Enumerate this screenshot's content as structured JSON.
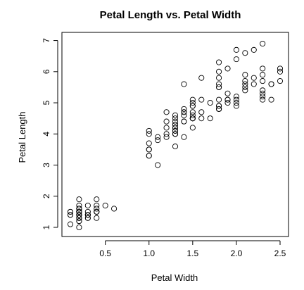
{
  "chart_data": {
    "type": "scatter",
    "title": "Petal Length vs. Petal Width",
    "xlabel": "Petal Width",
    "ylabel": "Petal Length",
    "xlim": [
      0.1,
      2.5
    ],
    "ylim": [
      1.0,
      6.9
    ],
    "x_ticks": [
      0.5,
      1.0,
      1.5,
      2.0,
      2.5
    ],
    "x_tick_labels": [
      "0.5",
      "1.0",
      "1.5",
      "2.0",
      "2.5"
    ],
    "y_ticks": [
      1,
      2,
      3,
      4,
      5,
      6,
      7
    ],
    "y_tick_labels": [
      "1",
      "2",
      "3",
      "4",
      "5",
      "6",
      "7"
    ],
    "grid": false,
    "marker": "open-circle",
    "points": [
      [
        0.2,
        1.4
      ],
      [
        0.2,
        1.4
      ],
      [
        0.2,
        1.3
      ],
      [
        0.2,
        1.5
      ],
      [
        0.2,
        1.4
      ],
      [
        0.4,
        1.7
      ],
      [
        0.3,
        1.4
      ],
      [
        0.2,
        1.5
      ],
      [
        0.2,
        1.4
      ],
      [
        0.1,
        1.5
      ],
      [
        0.2,
        1.5
      ],
      [
        0.2,
        1.6
      ],
      [
        0.1,
        1.4
      ],
      [
        0.1,
        1.1
      ],
      [
        0.2,
        1.2
      ],
      [
        0.4,
        1.5
      ],
      [
        0.4,
        1.3
      ],
      [
        0.3,
        1.4
      ],
      [
        0.3,
        1.7
      ],
      [
        0.3,
        1.5
      ],
      [
        0.2,
        1.7
      ],
      [
        0.4,
        1.5
      ],
      [
        0.2,
        1.0
      ],
      [
        0.5,
        1.7
      ],
      [
        0.2,
        1.9
      ],
      [
        0.2,
        1.6
      ],
      [
        0.4,
        1.6
      ],
      [
        0.2,
        1.5
      ],
      [
        0.2,
        1.4
      ],
      [
        0.2,
        1.6
      ],
      [
        0.2,
        1.6
      ],
      [
        0.4,
        1.5
      ],
      [
        0.1,
        1.5
      ],
      [
        0.2,
        1.4
      ],
      [
        0.2,
        1.5
      ],
      [
        0.2,
        1.2
      ],
      [
        0.2,
        1.3
      ],
      [
        0.1,
        1.4
      ],
      [
        0.2,
        1.3
      ],
      [
        0.2,
        1.5
      ],
      [
        0.3,
        1.3
      ],
      [
        0.3,
        1.3
      ],
      [
        0.2,
        1.3
      ],
      [
        0.6,
        1.6
      ],
      [
        0.4,
        1.9
      ],
      [
        0.3,
        1.4
      ],
      [
        0.2,
        1.6
      ],
      [
        0.2,
        1.4
      ],
      [
        0.2,
        1.5
      ],
      [
        0.2,
        1.4
      ],
      [
        1.4,
        4.7
      ],
      [
        1.5,
        4.5
      ],
      [
        1.5,
        4.9
      ],
      [
        1.3,
        4.0
      ],
      [
        1.5,
        4.6
      ],
      [
        1.3,
        4.5
      ],
      [
        1.6,
        4.7
      ],
      [
        1.0,
        3.3
      ],
      [
        1.3,
        4.6
      ],
      [
        1.4,
        3.9
      ],
      [
        1.0,
        3.5
      ],
      [
        1.5,
        4.2
      ],
      [
        1.0,
        4.0
      ],
      [
        1.4,
        4.7
      ],
      [
        1.3,
        3.6
      ],
      [
        1.4,
        4.4
      ],
      [
        1.5,
        4.5
      ],
      [
        1.0,
        4.1
      ],
      [
        1.5,
        4.5
      ],
      [
        1.1,
        3.9
      ],
      [
        1.8,
        4.8
      ],
      [
        1.3,
        4.0
      ],
      [
        1.5,
        4.9
      ],
      [
        1.2,
        4.7
      ],
      [
        1.3,
        4.3
      ],
      [
        1.4,
        4.4
      ],
      [
        1.4,
        4.8
      ],
      [
        1.7,
        5.0
      ],
      [
        1.5,
        4.5
      ],
      [
        1.0,
        3.5
      ],
      [
        1.1,
        3.8
      ],
      [
        1.0,
        3.7
      ],
      [
        1.2,
        3.9
      ],
      [
        1.6,
        5.1
      ],
      [
        1.5,
        4.5
      ],
      [
        1.6,
        4.5
      ],
      [
        1.5,
        4.7
      ],
      [
        1.3,
        4.4
      ],
      [
        1.3,
        4.1
      ],
      [
        1.3,
        4.0
      ],
      [
        1.2,
        4.4
      ],
      [
        1.4,
        4.6
      ],
      [
        1.2,
        4.0
      ],
      [
        1.0,
        3.3
      ],
      [
        1.3,
        4.2
      ],
      [
        1.2,
        4.2
      ],
      [
        1.3,
        4.2
      ],
      [
        1.3,
        4.3
      ],
      [
        1.1,
        3.0
      ],
      [
        1.3,
        4.1
      ],
      [
        2.5,
        6.0
      ],
      [
        1.9,
        5.1
      ],
      [
        2.1,
        5.9
      ],
      [
        1.8,
        5.6
      ],
      [
        2.2,
        5.8
      ],
      [
        2.1,
        6.6
      ],
      [
        1.7,
        4.5
      ],
      [
        1.8,
        6.3
      ],
      [
        1.8,
        5.8
      ],
      [
        2.5,
        6.1
      ],
      [
        2.0,
        5.1
      ],
      [
        1.9,
        5.3
      ],
      [
        2.1,
        5.5
      ],
      [
        2.0,
        5.0
      ],
      [
        2.4,
        5.1
      ],
      [
        2.3,
        5.3
      ],
      [
        1.8,
        5.5
      ],
      [
        2.2,
        6.7
      ],
      [
        2.3,
        6.9
      ],
      [
        1.5,
        5.0
      ],
      [
        2.3,
        5.7
      ],
      [
        2.0,
        4.9
      ],
      [
        2.0,
        6.7
      ],
      [
        1.8,
        4.9
      ],
      [
        2.1,
        5.7
      ],
      [
        1.8,
        6.0
      ],
      [
        1.8,
        4.8
      ],
      [
        1.8,
        4.9
      ],
      [
        2.1,
        5.6
      ],
      [
        1.6,
        5.8
      ],
      [
        1.9,
        6.1
      ],
      [
        2.0,
        6.4
      ],
      [
        2.2,
        5.6
      ],
      [
        1.5,
        5.1
      ],
      [
        1.4,
        5.6
      ],
      [
        2.3,
        6.1
      ],
      [
        2.4,
        5.6
      ],
      [
        1.8,
        5.5
      ],
      [
        1.8,
        4.8
      ],
      [
        2.1,
        5.4
      ],
      [
        2.4,
        5.6
      ],
      [
        2.3,
        5.1
      ],
      [
        1.9,
        5.1
      ],
      [
        2.3,
        5.9
      ],
      [
        2.5,
        5.7
      ],
      [
        2.3,
        5.2
      ],
      [
        1.9,
        5.0
      ],
      [
        2.0,
        5.2
      ],
      [
        2.3,
        5.4
      ],
      [
        1.8,
        5.1
      ]
    ]
  }
}
